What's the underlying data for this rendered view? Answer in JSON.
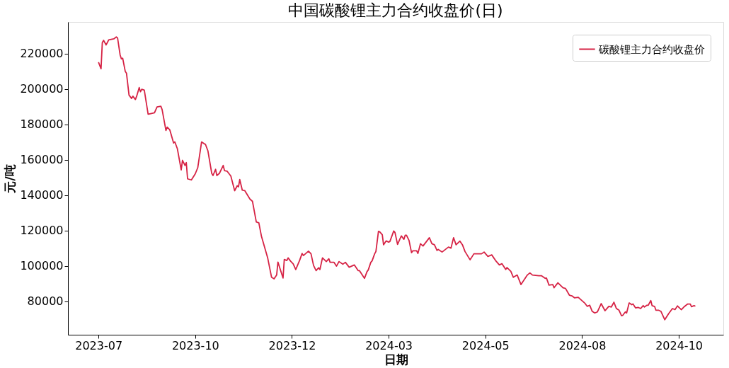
{
  "chart_data": {
    "type": "line",
    "title": "中国碳酸锂主力合约收盘价(日)",
    "xlabel": "日期",
    "ylabel": "元/吨",
    "xlim": [
      "2023-06-26",
      "2024-11-22"
    ],
    "xticks": [
      {
        "value": "2023-07-20",
        "label": "2023-07"
      },
      {
        "value": "2023-10-04",
        "label": "2023-10"
      },
      {
        "value": "2023-12-19",
        "label": "2023-12"
      },
      {
        "value": "2024-03-04",
        "label": "2024-03"
      },
      {
        "value": "2024-05-19",
        "label": "2024-05"
      },
      {
        "value": "2024-08-03",
        "label": "2024-08"
      },
      {
        "value": "2024-10-18",
        "label": "2024-10"
      }
    ],
    "ylim": [
      61000,
      238000
    ],
    "yticks": [
      80000,
      100000,
      120000,
      140000,
      160000,
      180000,
      200000,
      220000
    ],
    "grid": false,
    "legend": "top right",
    "marker": "none",
    "line_style": "solid",
    "x": [
      "2023-07-20",
      "2023-07-22",
      "2023-07-23",
      "2023-07-24",
      "2023-07-26",
      "2023-07-28",
      "2023-08-01",
      "2023-08-03",
      "2023-08-04",
      "2023-08-06",
      "2023-08-07",
      "2023-08-08",
      "2023-08-10",
      "2023-08-11",
      "2023-08-13",
      "2023-08-15",
      "2023-08-16",
      "2023-08-18",
      "2023-08-19",
      "2023-08-21",
      "2023-08-22",
      "2023-08-23",
      "2023-08-25",
      "2023-08-28",
      "2023-08-30",
      "2023-09-02",
      "2023-09-04",
      "2023-09-07",
      "2023-09-08",
      "2023-09-11",
      "2023-09-12",
      "2023-09-14",
      "2023-09-17",
      "2023-09-18",
      "2023-09-20",
      "2023-09-23",
      "2023-09-24",
      "2023-09-26",
      "2023-09-27",
      "2023-09-28",
      "2023-10-01",
      "2023-10-04",
      "2023-10-06",
      "2023-10-09",
      "2023-10-11",
      "2023-10-12",
      "2023-10-14",
      "2023-10-17",
      "2023-10-18",
      "2023-10-20",
      "2023-10-21",
      "2023-10-23",
      "2023-10-26",
      "2023-10-27",
      "2023-10-29",
      "2023-11-01",
      "2023-11-04",
      "2023-11-06",
      "2023-11-07",
      "2023-11-08",
      "2023-11-10",
      "2023-11-12",
      "2023-11-16",
      "2023-11-18",
      "2023-11-21",
      "2023-11-23",
      "2023-11-25",
      "2023-11-30",
      "2023-12-03",
      "2023-12-05",
      "2023-12-07",
      "2023-12-08",
      "2023-12-12",
      "2023-12-13",
      "2023-12-15",
      "2023-12-16",
      "2023-12-18",
      "2023-12-20",
      "2023-12-22",
      "2023-12-25",
      "2023-12-27",
      "2023-12-28",
      "2024-01-01",
      "2024-01-03",
      "2024-01-05",
      "2024-01-07",
      "2024-01-09",
      "2024-01-10",
      "2024-01-12",
      "2024-01-15",
      "2024-01-17",
      "2024-01-18",
      "2024-01-21",
      "2024-01-23",
      "2024-01-25",
      "2024-01-28",
      "2024-01-30",
      "2024-02-02",
      "2024-02-06",
      "2024-02-09",
      "2024-02-10",
      "2024-02-14",
      "2024-02-16",
      "2024-02-17",
      "2024-02-19",
      "2024-02-20",
      "2024-02-22",
      "2024-02-23",
      "2024-02-25",
      "2024-02-26",
      "2024-02-28",
      "2024-02-29",
      "2024-03-02",
      "2024-03-04",
      "2024-03-05",
      "2024-03-08",
      "2024-03-09",
      "2024-03-11",
      "2024-03-13",
      "2024-03-14",
      "2024-03-16",
      "2024-03-17",
      "2024-03-18",
      "2024-03-20",
      "2024-03-22",
      "2024-03-23",
      "2024-03-26",
      "2024-03-27",
      "2024-03-29",
      "2024-03-31",
      "2024-04-03",
      "2024-04-05",
      "2024-04-07",
      "2024-04-09",
      "2024-04-11",
      "2024-04-12",
      "2024-04-15",
      "2024-04-20",
      "2024-04-22",
      "2024-04-24",
      "2024-04-26",
      "2024-04-29",
      "2024-05-01",
      "2024-05-03",
      "2024-05-07",
      "2024-05-10",
      "2024-05-13",
      "2024-05-16",
      "2024-05-18",
      "2024-05-21",
      "2024-05-24",
      "2024-05-27",
      "2024-05-30",
      "2024-06-01",
      "2024-06-04",
      "2024-06-05",
      "2024-06-08",
      "2024-06-10",
      "2024-06-13",
      "2024-06-16",
      "2024-06-21",
      "2024-06-23",
      "2024-06-25",
      "2024-06-30",
      "2024-07-02",
      "2024-07-05",
      "2024-07-06",
      "2024-07-08",
      "2024-07-11",
      "2024-07-12",
      "2024-07-15",
      "2024-07-19",
      "2024-07-21",
      "2024-07-24",
      "2024-07-26",
      "2024-07-28",
      "2024-07-31",
      "2024-08-02",
      "2024-08-05",
      "2024-08-07",
      "2024-08-09",
      "2024-08-11",
      "2024-08-13",
      "2024-08-15",
      "2024-08-18",
      "2024-08-21",
      "2024-08-24",
      "2024-08-26",
      "2024-08-28",
      "2024-08-30",
      "2024-09-01",
      "2024-09-03",
      "2024-09-04",
      "2024-09-06",
      "2024-09-07",
      "2024-09-09",
      "2024-09-11",
      "2024-09-12",
      "2024-09-14",
      "2024-09-16",
      "2024-09-18",
      "2024-09-20",
      "2024-09-21",
      "2024-09-23",
      "2024-09-24",
      "2024-09-26",
      "2024-09-27",
      "2024-09-29",
      "2024-09-30",
      "2024-10-02",
      "2024-10-04",
      "2024-10-07",
      "2024-10-10",
      "2024-10-13",
      "2024-10-15",
      "2024-10-17",
      "2024-10-20",
      "2024-10-22",
      "2024-10-25",
      "2024-10-27",
      "2024-10-28",
      "2024-10-30",
      "2024-10-31"
    ],
    "series": [
      {
        "name": "碳酸锂主力合约收盘价",
        "color": "#d62345",
        "values": [
          215200,
          211500,
          226300,
          227600,
          225000,
          227800,
          228400,
          229500,
          228900,
          219300,
          217100,
          217500,
          210100,
          209000,
          196600,
          194700,
          196000,
          194100,
          196000,
          200900,
          198500,
          199900,
          199400,
          185800,
          186100,
          186600,
          189900,
          190300,
          188400,
          176600,
          178500,
          177000,
          169500,
          170100,
          166200,
          154300,
          159700,
          156800,
          158400,
          149200,
          148600,
          152000,
          155500,
          170100,
          169100,
          168800,
          165000,
          152300,
          151100,
          154600,
          151100,
          152300,
          156800,
          153900,
          153600,
          150800,
          142500,
          145300,
          144700,
          148800,
          142800,
          142500,
          137800,
          136500,
          124800,
          124300,
          116900,
          104300,
          93500,
          92600,
          94800,
          102100,
          93100,
          103600,
          103000,
          104500,
          102600,
          101100,
          97900,
          103000,
          107000,
          105800,
          108300,
          106800,
          100200,
          97300,
          98900,
          97900,
          104500,
          102400,
          104000,
          102000,
          102000,
          99800,
          102400,
          100900,
          102000,
          99200,
          100500,
          97300,
          97300,
          92900,
          96700,
          97700,
          102000,
          102800,
          106800,
          108100,
          119500,
          119200,
          117600,
          111900,
          114100,
          113400,
          113800,
          119700,
          118800,
          112100,
          115400,
          116900,
          115000,
          117300,
          117300,
          114400,
          107400,
          108500,
          108500,
          107000,
          112500,
          111200,
          114000,
          115900,
          112500,
          111900,
          108700,
          109300,
          107800,
          110600,
          110000,
          115900,
          111900,
          114000,
          111900,
          108100,
          103400,
          106800,
          106800,
          106800,
          107800,
          105300,
          106200,
          103000,
          100500,
          101200,
          97900,
          99000,
          96900,
          93500,
          94800,
          89400,
          94800,
          96000,
          94800,
          94400,
          94400,
          92900,
          93100,
          89100,
          89400,
          87600,
          90400,
          87600,
          87200,
          83400,
          83000,
          81900,
          82200,
          80900,
          79000,
          77100,
          77700,
          74200,
          73300,
          73900,
          78600,
          74600,
          77100,
          76700,
          79400,
          75800,
          74900,
          71800,
          72000,
          73900,
          73300,
          79000,
          78000,
          78400,
          76200,
          76500,
          75800,
          77500,
          76700,
          77700,
          77700,
          80300,
          77500,
          77000,
          74900,
          74900,
          74200,
          69500,
          72900,
          75800,
          75200,
          77300,
          75200,
          76700,
          78400,
          78400,
          76900,
          77500,
          77100
        ]
      }
    ]
  }
}
